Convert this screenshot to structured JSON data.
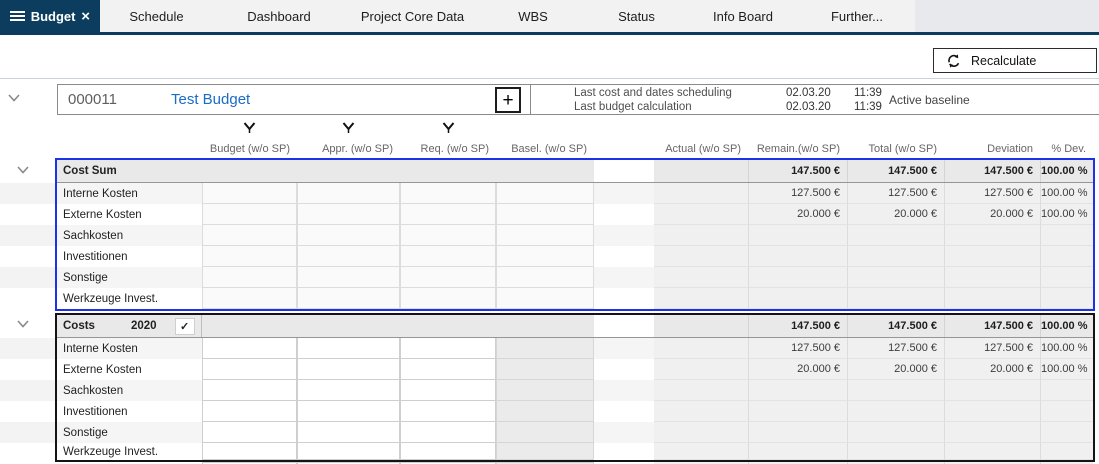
{
  "colors": {
    "tab_active_bg": "#0d3d5e",
    "section1_border": "#1d32e8",
    "section2_border": "#141414",
    "project_name_blue": "#1a6cc4"
  },
  "tabbar": {
    "active_tab": {
      "label": "Budget"
    },
    "tabs": [
      "Schedule",
      "Dashboard",
      "Project Core Data",
      "WBS",
      "Status",
      "Info Board",
      "Further..."
    ]
  },
  "toolbar": {
    "recalculate_label": "Recalculate"
  },
  "project": {
    "id": "000011",
    "name": "Test Budget",
    "meta": [
      {
        "label": "Last cost and dates scheduling",
        "date": "02.03.20",
        "time": "11:39"
      },
      {
        "label": "Last budget calculation",
        "date": "02.03.20",
        "time": "11:39"
      }
    ],
    "baseline_label": "Active baseline"
  },
  "table": {
    "columns": [
      {
        "label": "Budget (w/o SP)",
        "marker": true
      },
      {
        "label": "Appr. (w/o SP)",
        "marker": true
      },
      {
        "label": "Req. (w/o SP)",
        "marker": true
      },
      {
        "label": "Basel. (w/o SP)",
        "marker": false
      },
      {
        "label": "Actual (w/o SP)",
        "marker": false
      },
      {
        "label": "Remain.(w/o SP)",
        "marker": false
      },
      {
        "label": "Total (w/o SP)",
        "marker": false
      },
      {
        "label": "Deviation",
        "marker": false
      },
      {
        "label": "% Dev.",
        "marker": false
      }
    ],
    "sections": [
      {
        "title": "Cost Sum",
        "year": "",
        "checked": false,
        "accent": "blue",
        "editable_inputs": false,
        "totals": [
          "147.500 €",
          "147.500 €",
          "147.500 €",
          "100.00 %"
        ],
        "rows": [
          {
            "label": "Interne Kosten",
            "values": [
              "127.500 €",
              "127.500 €",
              "127.500 €",
              "100.00 %"
            ]
          },
          {
            "label": "Externe Kosten",
            "values": [
              "20.000 €",
              "20.000 €",
              "20.000 €",
              "100.00 %"
            ]
          },
          {
            "label": "Sachkosten",
            "values": [
              "",
              "",
              "",
              ""
            ]
          },
          {
            "label": "Investitionen",
            "values": [
              "",
              "",
              "",
              ""
            ]
          },
          {
            "label": "Sonstige",
            "values": [
              "",
              "",
              "",
              ""
            ]
          },
          {
            "label": "Werkzeuge Invest.",
            "values": [
              "",
              "",
              "",
              ""
            ]
          }
        ]
      },
      {
        "title": "Costs",
        "year": "2020",
        "checked": true,
        "accent": "black",
        "editable_inputs": true,
        "totals": [
          "147.500 €",
          "147.500 €",
          "147.500 €",
          "100.00 %"
        ],
        "rows": [
          {
            "label": "Interne Kosten",
            "values": [
              "127.500 €",
              "127.500 €",
              "127.500 €",
              "100.00 %"
            ]
          },
          {
            "label": "Externe Kosten",
            "values": [
              "20.000 €",
              "20.000 €",
              "20.000 €",
              "100.00 %"
            ]
          },
          {
            "label": "Sachkosten",
            "values": [
              "",
              "",
              "",
              ""
            ]
          },
          {
            "label": "Investitionen",
            "values": [
              "",
              "",
              "",
              ""
            ]
          },
          {
            "label": "Sonstige",
            "values": [
              "",
              "",
              "",
              ""
            ]
          },
          {
            "label": "Werkzeuge Invest.",
            "values": [
              "",
              "",
              "",
              ""
            ]
          }
        ]
      }
    ]
  }
}
